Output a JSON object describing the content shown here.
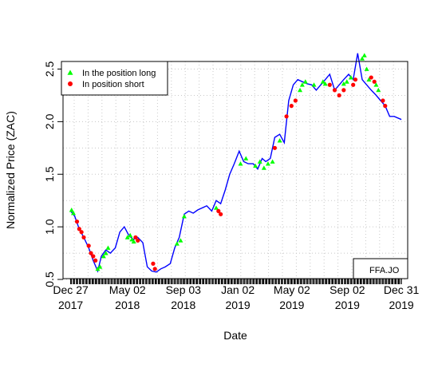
{
  "chart_data": {
    "type": "line",
    "title": "",
    "xlabel": "Date",
    "ylabel": "Normalized Price (ZAC)",
    "ylim": [
      0.5,
      2.6
    ],
    "y_ticks": [
      0.5,
      1.0,
      1.5,
      2.0,
      2.5
    ],
    "x_ticks": [
      {
        "date": "2017-12-27",
        "line1": "Dec 27",
        "line2": "2017"
      },
      {
        "date": "2018-05-02",
        "line1": "May 02",
        "line2": "2018"
      },
      {
        "date": "2018-09-03",
        "line1": "Sep 03",
        "line2": "2018"
      },
      {
        "date": "2019-01-02",
        "line1": "Jan 02",
        "line2": "2019"
      },
      {
        "date": "2019-05-02",
        "line1": "May 02",
        "line2": "2019"
      },
      {
        "date": "2019-09-02",
        "line1": "Sep 02",
        "line2": "2019"
      },
      {
        "date": "2019-12-31",
        "line1": "Dec 31",
        "line2": "2019"
      }
    ],
    "grid": true,
    "legend_position": "top-left",
    "box_label": "FFA.JO",
    "series": [
      {
        "name": "",
        "kind": "line",
        "color": "#0000ff",
        "x": [
          "2017-12-27",
          "2018-01-05",
          "2018-01-15",
          "2018-01-25",
          "2018-02-05",
          "2018-02-15",
          "2018-02-25",
          "2018-03-05",
          "2018-03-15",
          "2018-03-25",
          "2018-04-05",
          "2018-04-15",
          "2018-04-25",
          "2018-05-05",
          "2018-05-15",
          "2018-05-25",
          "2018-06-05",
          "2018-06-15",
          "2018-06-25",
          "2018-07-05",
          "2018-07-15",
          "2018-07-25",
          "2018-08-05",
          "2018-08-15",
          "2018-08-25",
          "2018-09-05",
          "2018-09-15",
          "2018-09-25",
          "2018-10-05",
          "2018-10-15",
          "2018-10-25",
          "2018-11-05",
          "2018-11-15",
          "2018-11-25",
          "2018-12-05",
          "2018-12-15",
          "2018-12-25",
          "2019-01-05",
          "2019-01-15",
          "2019-01-25",
          "2019-02-05",
          "2019-02-15",
          "2019-02-25",
          "2019-03-05",
          "2019-03-15",
          "2019-03-25",
          "2019-04-05",
          "2019-04-15",
          "2019-04-25",
          "2019-05-05",
          "2019-05-15",
          "2019-05-25",
          "2019-06-05",
          "2019-06-15",
          "2019-06-25",
          "2019-07-05",
          "2019-07-15",
          "2019-07-25",
          "2019-08-05",
          "2019-08-15",
          "2019-08-25",
          "2019-09-05",
          "2019-09-15",
          "2019-09-25",
          "2019-10-05",
          "2019-10-15",
          "2019-10-25",
          "2019-11-05",
          "2019-11-15",
          "2019-11-25",
          "2019-12-05",
          "2019-12-15",
          "2019-12-31"
        ],
        "y": [
          1.15,
          1.1,
          0.98,
          0.9,
          0.8,
          0.68,
          0.58,
          0.72,
          0.78,
          0.75,
          0.8,
          0.95,
          1.0,
          0.92,
          0.88,
          0.9,
          0.85,
          0.62,
          0.58,
          0.57,
          0.6,
          0.62,
          0.65,
          0.8,
          0.9,
          1.12,
          1.15,
          1.13,
          1.16,
          1.18,
          1.2,
          1.15,
          1.25,
          1.22,
          1.35,
          1.5,
          1.6,
          1.72,
          1.62,
          1.6,
          1.6,
          1.55,
          1.65,
          1.62,
          1.65,
          1.85,
          1.88,
          1.8,
          2.2,
          2.35,
          2.4,
          2.38,
          2.36,
          2.35,
          2.3,
          2.35,
          2.4,
          2.45,
          2.3,
          2.35,
          2.4,
          2.45,
          2.4,
          2.65,
          2.4,
          2.35,
          2.3,
          2.25,
          2.2,
          2.15,
          2.05,
          2.05,
          2.02
        ]
      },
      {
        "name": "In the position long",
        "kind": "points",
        "marker": "triangle",
        "color": "#00ff00",
        "x": [
          "2017-12-29",
          "2018-01-02",
          "2018-02-25",
          "2018-03-02",
          "2018-03-10",
          "2018-03-15",
          "2018-03-20",
          "2018-05-02",
          "2018-05-08",
          "2018-05-12",
          "2018-05-16",
          "2018-08-20",
          "2018-08-28",
          "2018-09-05",
          "2018-11-15",
          "2019-01-08",
          "2019-01-20",
          "2019-02-10",
          "2019-02-20",
          "2019-03-01",
          "2019-03-10",
          "2019-03-20",
          "2019-04-05",
          "2019-05-20",
          "2019-05-25",
          "2019-06-01",
          "2019-06-20",
          "2019-07-10",
          "2019-07-15",
          "2019-08-25",
          "2019-09-01",
          "2019-09-10",
          "2019-10-05",
          "2019-10-10",
          "2019-10-15",
          "2019-10-20",
          "2019-11-05",
          "2019-11-10"
        ],
        "y": [
          1.16,
          1.13,
          0.6,
          0.62,
          0.72,
          0.75,
          0.8,
          0.9,
          0.92,
          0.88,
          0.86,
          0.84,
          0.87,
          1.1,
          1.18,
          1.6,
          1.65,
          1.58,
          1.62,
          1.56,
          1.6,
          1.62,
          1.82,
          2.3,
          2.35,
          2.38,
          2.35,
          2.38,
          2.36,
          2.36,
          2.38,
          2.42,
          2.6,
          2.63,
          2.5,
          2.4,
          2.35,
          2.3
        ]
      },
      {
        "name": "In position short",
        "kind": "points",
        "marker": "circle",
        "color": "#ff0000",
        "x": [
          "2018-01-10",
          "2018-01-15",
          "2018-01-20",
          "2018-01-25",
          "2018-02-05",
          "2018-02-10",
          "2018-02-15",
          "2018-02-20",
          "2018-05-20",
          "2018-05-25",
          "2018-06-28",
          "2018-07-02",
          "2018-11-20",
          "2018-11-25",
          "2019-03-25",
          "2019-04-20",
          "2019-05-01",
          "2019-05-10",
          "2019-07-25",
          "2019-08-05",
          "2019-08-15",
          "2019-08-25",
          "2019-09-15",
          "2019-09-20",
          "2019-10-25",
          "2019-11-01",
          "2019-11-20",
          "2019-11-25"
        ],
        "y": [
          1.05,
          0.98,
          0.95,
          0.9,
          0.82,
          0.75,
          0.72,
          0.68,
          0.9,
          0.87,
          0.65,
          0.6,
          1.15,
          1.12,
          1.75,
          2.05,
          2.15,
          2.2,
          2.35,
          2.3,
          2.25,
          2.3,
          2.35,
          2.4,
          2.42,
          2.38,
          2.2,
          2.15
        ]
      }
    ]
  }
}
